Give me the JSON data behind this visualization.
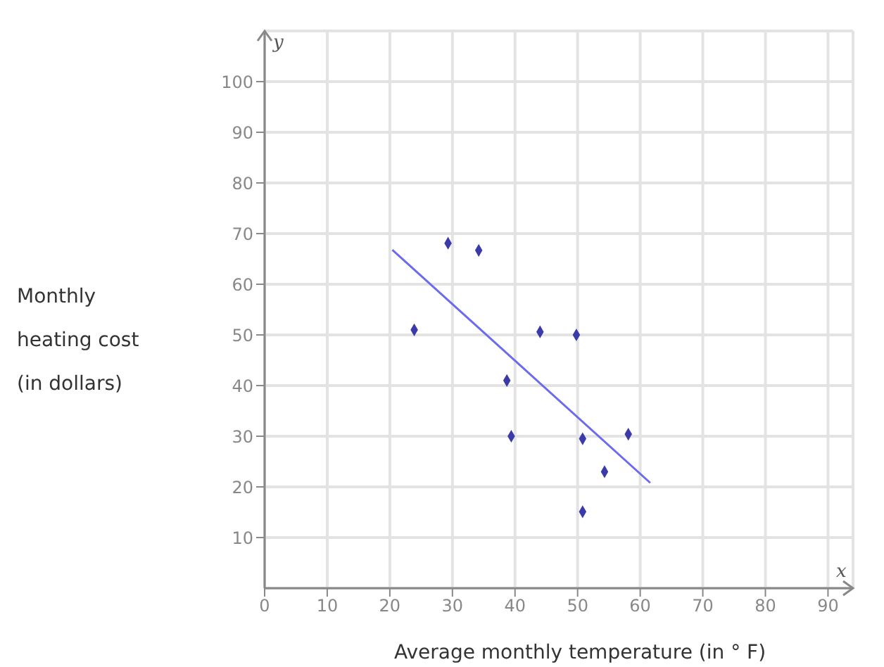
{
  "chart_data": {
    "type": "scatter",
    "xlabel": "Average monthly temperature (in ° F)",
    "ylabel": "Monthly heating cost (in dollars)",
    "xlim": [
      0,
      94
    ],
    "ylim": [
      0,
      110
    ],
    "xticks": [
      0,
      10,
      20,
      30,
      40,
      50,
      60,
      70,
      80,
      90
    ],
    "yticks": [
      10,
      20,
      30,
      40,
      50,
      60,
      70,
      80,
      90,
      100
    ],
    "grid": true,
    "annotations": [
      "x",
      "y"
    ],
    "series": [
      {
        "marker": "diamond",
        "color": "#3a3aa8",
        "x": [
          23.9,
          29.3,
          34.2,
          38.7,
          39.4,
          44.0,
          49.8,
          50.8,
          50.8,
          54.3,
          58.1
        ],
        "values": [
          51,
          68.1,
          66.7,
          41,
          30,
          50.6,
          50,
          29.5,
          15.1,
          23,
          30.4
        ]
      },
      {
        "type": "line",
        "color": "#6b6bf0",
        "x": [
          20.4,
          61.6
        ],
        "values": [
          66.8,
          20.8
        ]
      }
    ]
  }
}
